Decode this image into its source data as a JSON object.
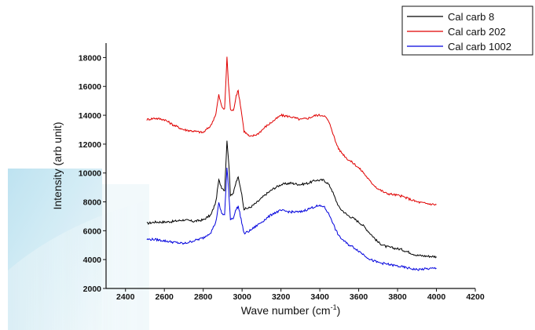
{
  "chart_data": {
    "type": "line",
    "xlabel": "Wave number (cm",
    "xlabel_sup": "-1",
    "xlabel_close": ")",
    "ylabel": "Intensity (arb unit)",
    "xlim": [
      2300,
      4200
    ],
    "ylim": [
      2000,
      19000
    ],
    "x_ticks": [
      2400,
      2600,
      2800,
      3000,
      3200,
      3400,
      3600,
      3800,
      4000,
      4200
    ],
    "y_ticks": [
      2000,
      4000,
      6000,
      8000,
      10000,
      12000,
      14000,
      16000,
      18000
    ],
    "grid": false,
    "legend_position": "top-right",
    "series": [
      {
        "name": "Cal carb 8",
        "color": "#000000",
        "x": [
          2510,
          2550,
          2600,
          2650,
          2700,
          2750,
          2800,
          2840,
          2865,
          2880,
          2895,
          2910,
          2922,
          2930,
          2940,
          2955,
          2970,
          2980,
          2995,
          3010,
          3040,
          3080,
          3120,
          3160,
          3200,
          3250,
          3300,
          3340,
          3380,
          3420,
          3440,
          3460,
          3480,
          3500,
          3540,
          3580,
          3620,
          3660,
          3700,
          3740,
          3780,
          3820,
          3860,
          3900,
          3940,
          4000
        ],
        "y": [
          6500,
          6600,
          6600,
          6650,
          6750,
          6650,
          6750,
          7100,
          8000,
          9500,
          9000,
          8800,
          12200,
          11000,
          8500,
          8600,
          9400,
          9700,
          8800,
          7500,
          7600,
          8000,
          8500,
          8900,
          9200,
          9300,
          9200,
          9300,
          9500,
          9500,
          9300,
          8900,
          8200,
          7600,
          7100,
          6800,
          6400,
          5800,
          5200,
          4900,
          4800,
          4700,
          4500,
          4300,
          4250,
          4200
        ]
      },
      {
        "name": "Cal carb 202",
        "color": "#e00000",
        "x": [
          2510,
          2550,
          2600,
          2650,
          2700,
          2750,
          2800,
          2840,
          2865,
          2880,
          2895,
          2910,
          2922,
          2930,
          2940,
          2955,
          2970,
          2980,
          2995,
          3010,
          3040,
          3080,
          3120,
          3160,
          3200,
          3250,
          3300,
          3340,
          3380,
          3420,
          3440,
          3460,
          3480,
          3500,
          3540,
          3580,
          3620,
          3660,
          3700,
          3740,
          3780,
          3820,
          3860,
          3900,
          3940,
          4000
        ],
        "y": [
          13700,
          13800,
          13700,
          13300,
          13000,
          12900,
          12800,
          13300,
          14100,
          15400,
          14600,
          14400,
          18000,
          16200,
          14400,
          14300,
          15400,
          15700,
          14400,
          12900,
          12500,
          12700,
          13200,
          13600,
          14000,
          13900,
          13700,
          13800,
          14000,
          14000,
          13700,
          13100,
          12200,
          11600,
          11000,
          10600,
          10100,
          9400,
          8900,
          8600,
          8500,
          8400,
          8200,
          8000,
          7900,
          7800
        ]
      },
      {
        "name": "Cal carb 1002",
        "color": "#0000dd",
        "x": [
          2510,
          2550,
          2600,
          2650,
          2700,
          2750,
          2800,
          2840,
          2865,
          2880,
          2895,
          2910,
          2922,
          2930,
          2940,
          2955,
          2970,
          2980,
          2995,
          3010,
          3040,
          3080,
          3120,
          3160,
          3200,
          3250,
          3300,
          3340,
          3380,
          3420,
          3440,
          3460,
          3480,
          3500,
          3540,
          3580,
          3620,
          3660,
          3700,
          3740,
          3780,
          3820,
          3860,
          3900,
          3940,
          4000
        ],
        "y": [
          5400,
          5400,
          5300,
          5200,
          5100,
          5300,
          5500,
          5900,
          6600,
          7900,
          7200,
          7100,
          10300,
          9000,
          6800,
          6900,
          7500,
          7700,
          6800,
          5800,
          6000,
          6400,
          6800,
          7200,
          7400,
          7300,
          7300,
          7500,
          7700,
          7700,
          7300,
          6800,
          6100,
          5600,
          5100,
          4800,
          4400,
          4000,
          3800,
          3700,
          3600,
          3500,
          3400,
          3300,
          3350,
          3400
        ]
      }
    ]
  }
}
